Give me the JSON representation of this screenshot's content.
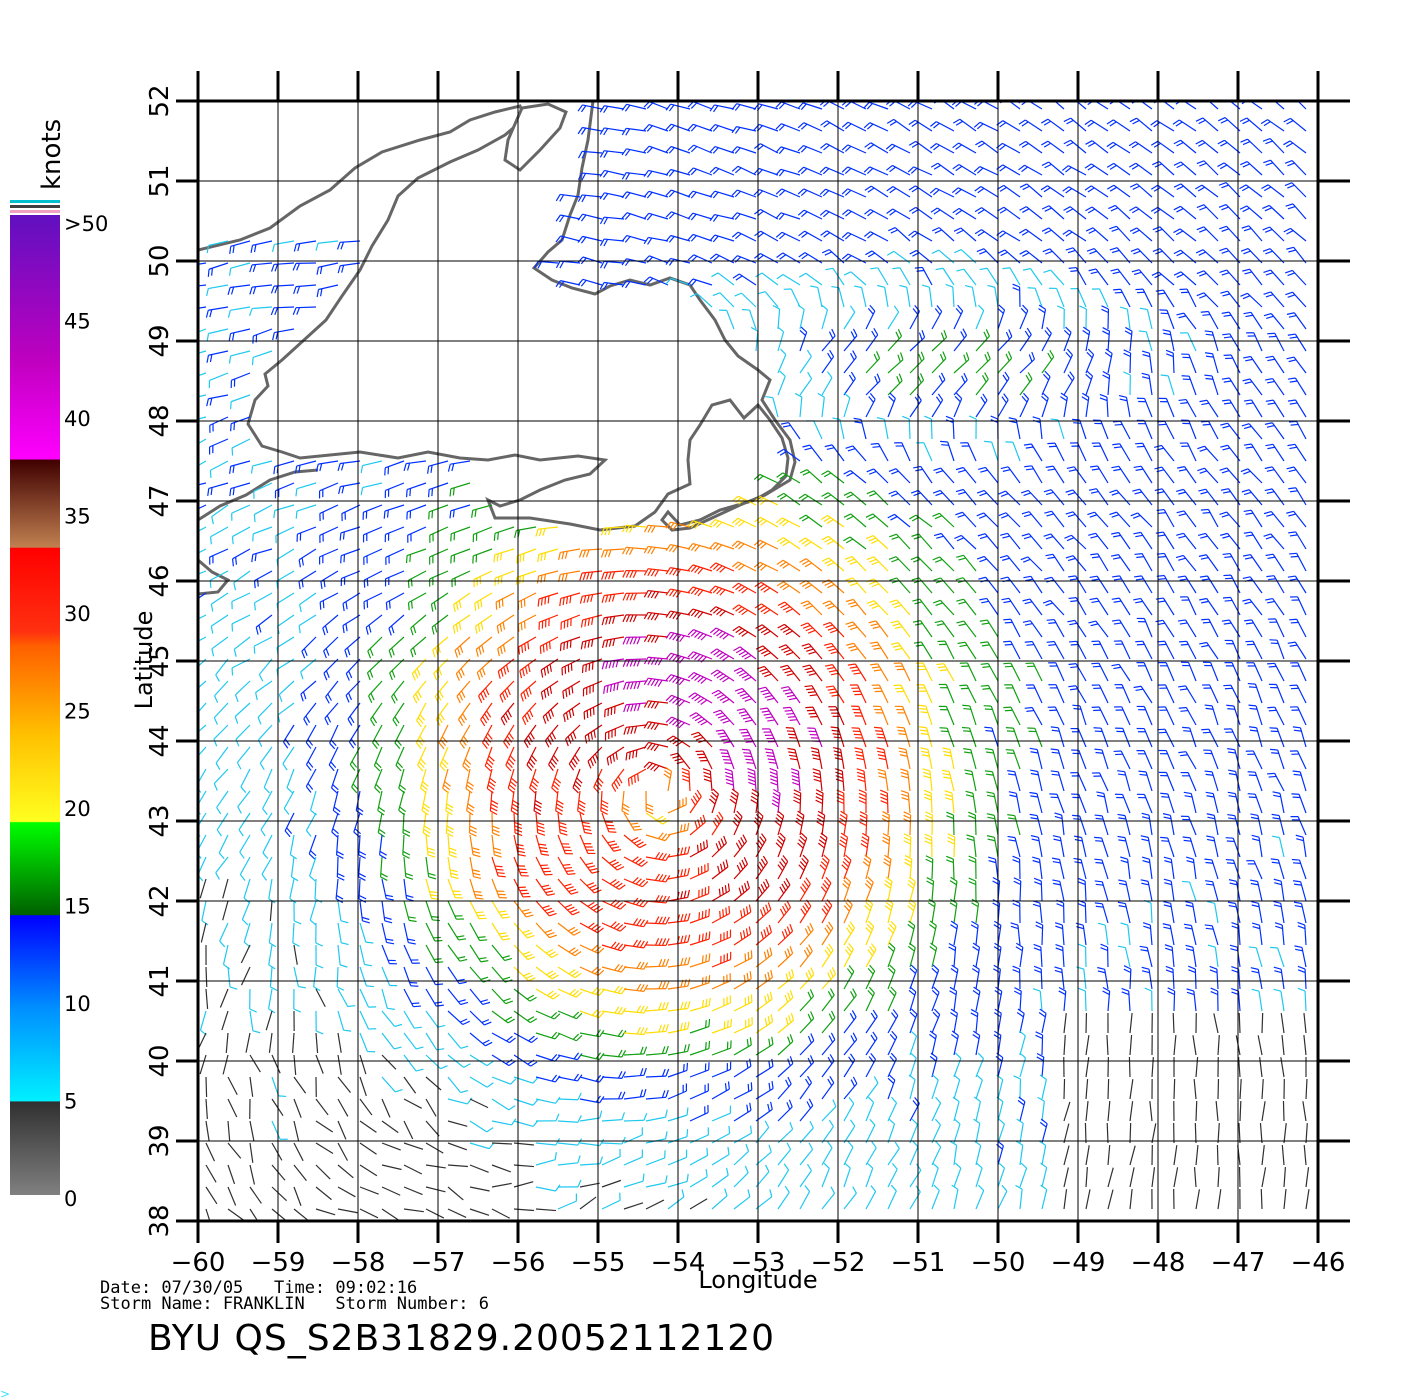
{
  "colorbar": {
    "title": "knots",
    "ticks": [
      ">50",
      "45",
      "40",
      "35",
      "30",
      "25",
      "20",
      "15",
      "10",
      "5",
      "0"
    ]
  },
  "map": {
    "lon_ticks": [
      "−60",
      "−59",
      "−58",
      "−57",
      "−56",
      "−55",
      "−54",
      "−53",
      "−52",
      "−51",
      "−50",
      "−49",
      "−48",
      "−47",
      "−46"
    ],
    "lat_ticks": [
      "38",
      "39",
      "40",
      "41",
      "42",
      "43",
      "44",
      "45",
      "46",
      "47",
      "48",
      "49",
      "50",
      "51",
      "52"
    ],
    "xlabel": "Longitude",
    "ylabel": "Latitude",
    "lon_range": [
      -60,
      -46
    ],
    "lat_range": [
      38,
      52
    ],
    "storm_center": {
      "lon": -54.2,
      "lat": 43.4
    },
    "secondary_high_wind_center": {
      "lon": -51.0,
      "lat": 48.6
    }
  },
  "info": {
    "line1": "Date: 07/30/05   Time: 09:02:16",
    "line2": "Storm Name: FRANKLIN   Storm Number: 6"
  },
  "product_id": "BYU  QS_S2B31829.20052112120",
  "colors": {
    "speed_scale": [
      "#808080",
      "#303030",
      "#00e5ff",
      "#0080ff",
      "#0000ff",
      "#007000",
      "#00ff00",
      "#ffff00",
      "#ffc000",
      "#ff8000",
      "#ff4000",
      "#ff0000",
      "#e01010",
      "#c07040",
      "#a05030",
      "#400000",
      "#ff00ff",
      "#c000c0",
      "#8000c0",
      "#6010c0"
    ],
    "coast": "#666666"
  }
}
